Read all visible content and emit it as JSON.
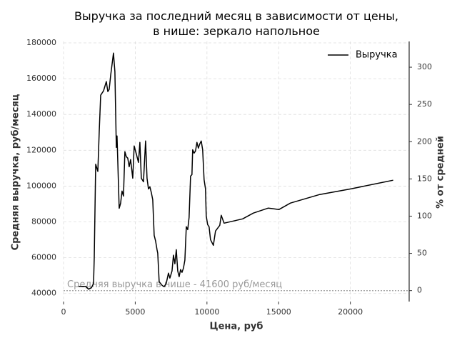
{
  "chart_data": {
    "type": "line",
    "title": "Выручка за последний месяц в зависимости от цены,\nв нише: зеркало напольное",
    "x_label": "Цена, руб",
    "y_label": "Средняя выручка, руб/месяц",
    "y2_label": "% от средней",
    "x": [
      1045,
      1542,
      1741,
      1940,
      2090,
      2139,
      2239,
      2388,
      2488,
      2587,
      2786,
      2985,
      3085,
      3184,
      3284,
      3383,
      3483,
      3582,
      3682,
      3731,
      3881,
      3980,
      4080,
      4179,
      4279,
      4378,
      4478,
      4577,
      4677,
      4826,
      4925,
      5075,
      5224,
      5323,
      5422,
      5572,
      5721,
      5821,
      5920,
      6020,
      6119,
      6219,
      6318,
      6418,
      6517,
      6567,
      6667,
      6866,
      7015,
      7164,
      7313,
      7413,
      7562,
      7662,
      7761,
      7861,
      7960,
      8060,
      8159,
      8259,
      8358,
      8458,
      8557,
      8657,
      8756,
      8856,
      8955,
      9005,
      9104,
      9204,
      9303,
      9403,
      9502,
      9602,
      9701,
      9801,
      9900,
      9950,
      10050,
      10149,
      10249,
      10448,
      10597,
      10896,
      10995,
      11194,
      12488,
      13234,
      14278,
      15025,
      15821,
      17861,
      20050,
      22985
    ],
    "series": [
      {
        "name": "Выручка",
        "color": "#000000",
        "values": [
          44000,
          44000,
          42400,
          43200,
          45600,
          60300,
          112200,
          108200,
          130900,
          150800,
          153200,
          158400,
          152800,
          154000,
          161900,
          167900,
          174300,
          163900,
          121600,
          128000,
          87600,
          90400,
          97200,
          94400,
          119200,
          116400,
          115600,
          110800,
          114800,
          104400,
          122400,
          118000,
          113200,
          124400,
          104400,
          102400,
          125200,
          104400,
          98400,
          99600,
          96400,
          92400,
          72500,
          69300,
          64500,
          62500,
          46600,
          44600,
          43800,
          45800,
          51400,
          48600,
          52600,
          61400,
          56600,
          64500,
          52600,
          49400,
          53400,
          51800,
          54200,
          58600,
          77300,
          75700,
          82500,
          105600,
          106400,
          120300,
          118400,
          119600,
          124400,
          121200,
          123600,
          125200,
          120300,
          103600,
          98400,
          83300,
          78500,
          77300,
          70100,
          66900,
          74900,
          78100,
          83700,
          79300,
          81700,
          84900,
          87700,
          86900,
          90500,
          95300,
          98500,
          103300
        ]
      }
    ],
    "hline": {
      "value": 41600,
      "label": "Средняя выручка в нише - 41600 руб/месяц",
      "color": "#999999"
    },
    "xlim": [
      0,
      24100
    ],
    "ylim": [
      35500,
      180800
    ],
    "y2lim": [
      -14.7,
      334.6
    ],
    "xticks": [
      0,
      5000,
      10000,
      15000,
      20000
    ],
    "yticks": [
      40000,
      60000,
      80000,
      100000,
      120000,
      140000,
      160000,
      180000
    ],
    "y2ticks": [
      0,
      50,
      100,
      150,
      200,
      250,
      300
    ],
    "grid": true,
    "legend": "upper right"
  }
}
